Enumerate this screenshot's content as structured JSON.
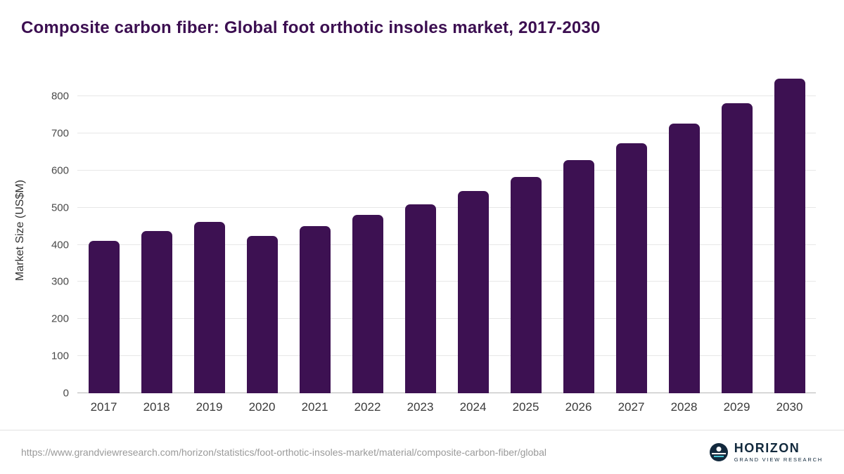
{
  "title": "Composite carbon fiber: Global foot orthotic insoles market, 2017-2030",
  "footer": {
    "source_url": "https://www.grandviewresearch.com/horizon/statistics/foot-orthotic-insoles-market/material/composite-carbon-fiber/global",
    "logo_name": "HORIZON",
    "logo_subtitle": "GRAND VIEW RESEARCH"
  },
  "colors": {
    "bar": "#3d1152",
    "title": "#3c0f51",
    "gridline": "#e7e7e7",
    "logo_navy": "#12293d",
    "logo_teal": "#49c5d6"
  },
  "chart_data": {
    "type": "bar",
    "title": "Composite carbon fiber: Global foot orthotic insoles market, 2017-2030",
    "xlabel": "",
    "ylabel": "Market Size (US$M)",
    "categories": [
      "2017",
      "2018",
      "2019",
      "2020",
      "2021",
      "2022",
      "2023",
      "2024",
      "2025",
      "2026",
      "2027",
      "2028",
      "2029",
      "2030"
    ],
    "values": [
      410,
      437,
      461,
      423,
      450,
      480,
      510,
      546,
      583,
      628,
      674,
      726,
      782,
      848
    ],
    "ylim": [
      0,
      880
    ],
    "yticks": [
      0,
      100,
      200,
      300,
      400,
      500,
      600,
      700,
      800
    ],
    "grid": "horizontal",
    "legend": "none"
  }
}
